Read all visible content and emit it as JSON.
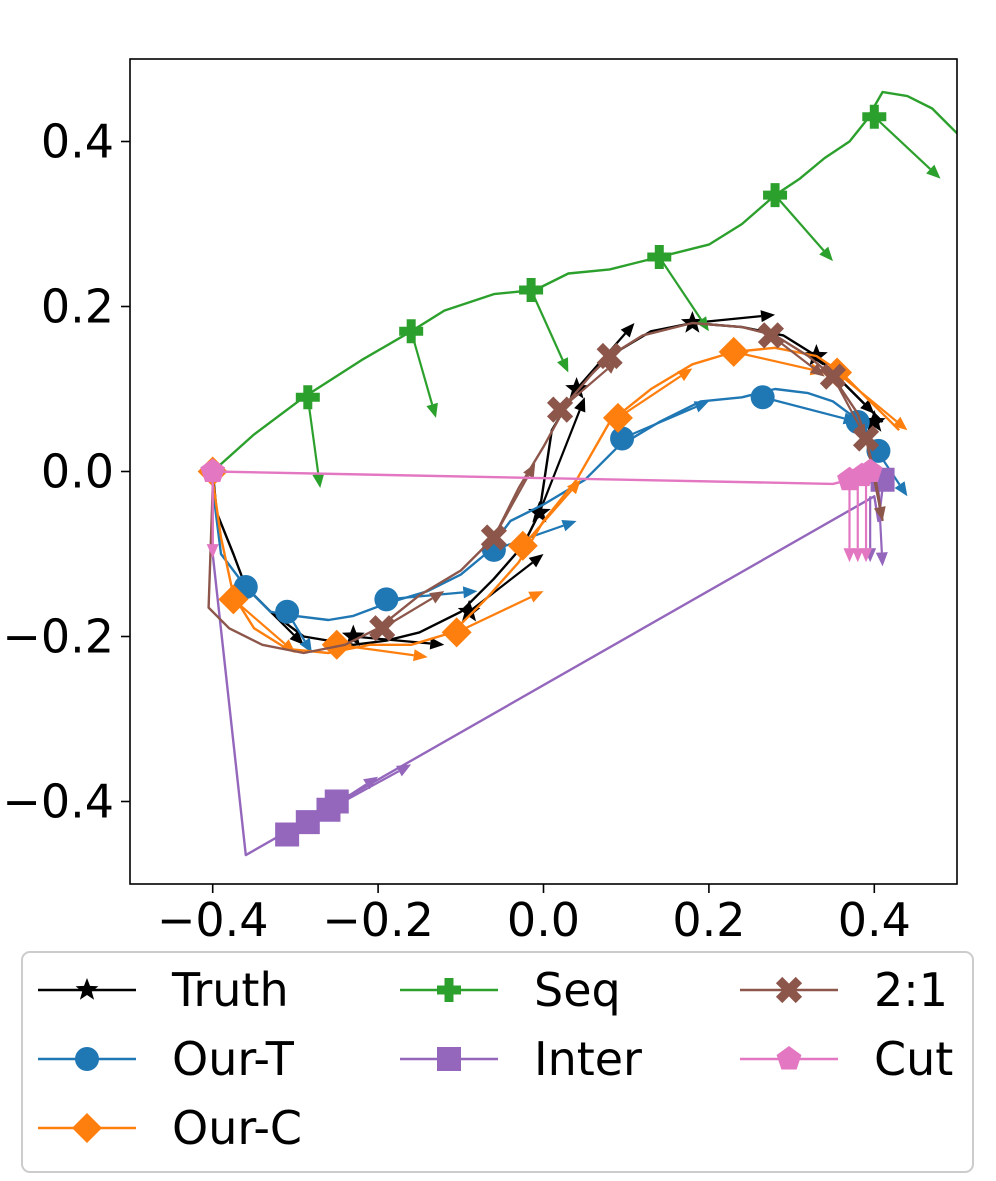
{
  "chart_data": {
    "type": "line",
    "title": "",
    "xlabel": "",
    "ylabel": "",
    "xlim": [
      -0.5,
      0.5
    ],
    "ylim": [
      -0.5,
      0.5
    ],
    "grid": false,
    "legend_position": "bottom",
    "xticks": [
      -0.4,
      -0.2,
      0.0,
      0.2,
      0.4
    ],
    "yticks": [
      -0.4,
      -0.2,
      0.0,
      0.2,
      0.4
    ],
    "xtick_labels": [
      "−0.4",
      "−0.2",
      "0.0",
      "0.2",
      "0.4"
    ],
    "ytick_labels": [
      "−0.4",
      "−0.2",
      "0.0",
      "0.2",
      "0.4"
    ],
    "series": [
      {
        "name": "Truth",
        "color": "#000000",
        "marker": "star",
        "path": [
          [
            -0.4,
            0.0
          ],
          [
            -0.395,
            -0.05
          ],
          [
            -0.375,
            -0.1
          ],
          [
            -0.36,
            -0.14
          ],
          [
            -0.33,
            -0.17
          ],
          [
            -0.29,
            -0.2
          ],
          [
            -0.23,
            -0.21
          ],
          [
            -0.19,
            -0.205
          ],
          [
            -0.15,
            -0.195
          ],
          [
            -0.1,
            -0.17
          ],
          [
            -0.06,
            -0.13
          ],
          [
            -0.025,
            -0.09
          ],
          [
            -0.005,
            -0.05
          ],
          [
            0.01,
            0.05
          ],
          [
            0.04,
            0.1
          ],
          [
            0.08,
            0.14
          ],
          [
            0.13,
            0.17
          ],
          [
            0.18,
            0.18
          ],
          [
            0.24,
            0.175
          ],
          [
            0.29,
            0.165
          ],
          [
            0.33,
            0.14
          ],
          [
            0.36,
            0.11
          ],
          [
            0.39,
            0.08
          ],
          [
            0.41,
            0.06
          ]
        ],
        "markers": [
          [
            -0.4,
            0.0
          ],
          [
            -0.36,
            -0.14
          ],
          [
            -0.23,
            -0.2
          ],
          [
            -0.09,
            -0.17
          ],
          [
            -0.005,
            -0.05
          ],
          [
            0.04,
            0.1
          ],
          [
            0.18,
            0.18
          ],
          [
            0.33,
            0.14
          ],
          [
            0.4,
            0.06
          ]
        ],
        "arrows": [
          [
            [
              -0.36,
              -0.14
            ],
            [
              -0.29,
              -0.21
            ]
          ],
          [
            [
              -0.23,
              -0.2
            ],
            [
              -0.12,
              -0.21
            ]
          ],
          [
            [
              -0.09,
              -0.17
            ],
            [
              0.0,
              -0.1
            ]
          ],
          [
            [
              -0.005,
              -0.05
            ],
            [
              0.05,
              0.09
            ]
          ],
          [
            [
              0.04,
              0.1
            ],
            [
              0.11,
              0.18
            ]
          ],
          [
            [
              0.18,
              0.18
            ],
            [
              0.28,
              0.19
            ]
          ],
          [
            [
              0.33,
              0.14
            ],
            [
              0.4,
              0.07
            ]
          ]
        ]
      },
      {
        "name": "Our-T",
        "color": "#1f77b4",
        "marker": "circle",
        "path": [
          [
            -0.4,
            -0.02
          ],
          [
            -0.39,
            -0.1
          ],
          [
            -0.36,
            -0.14
          ],
          [
            -0.33,
            -0.17
          ],
          [
            -0.3,
            -0.175
          ],
          [
            -0.26,
            -0.18
          ],
          [
            -0.23,
            -0.175
          ],
          [
            -0.19,
            -0.16
          ],
          [
            -0.14,
            -0.145
          ],
          [
            -0.1,
            -0.125
          ],
          [
            -0.07,
            -0.1
          ],
          [
            -0.04,
            -0.06
          ],
          [
            0.0,
            -0.04
          ],
          [
            0.05,
            -0.01
          ],
          [
            0.09,
            0.03
          ],
          [
            0.14,
            0.06
          ],
          [
            0.19,
            0.085
          ],
          [
            0.24,
            0.09
          ],
          [
            0.28,
            0.1
          ],
          [
            0.32,
            0.095
          ],
          [
            0.35,
            0.085
          ],
          [
            0.37,
            0.07
          ],
          [
            0.39,
            0.05
          ],
          [
            0.4,
            0.03
          ]
        ],
        "markers": [
          [
            -0.36,
            -0.14
          ],
          [
            -0.31,
            -0.17
          ],
          [
            -0.19,
            -0.155
          ],
          [
            -0.06,
            -0.095
          ],
          [
            0.095,
            0.04
          ],
          [
            0.265,
            0.09
          ],
          [
            0.38,
            0.06
          ],
          [
            0.405,
            0.025
          ]
        ],
        "arrows": [
          [
            [
              -0.31,
              -0.17
            ],
            [
              -0.28,
              -0.22
            ]
          ],
          [
            [
              -0.19,
              -0.155
            ],
            [
              -0.08,
              -0.145
            ]
          ],
          [
            [
              -0.06,
              -0.095
            ],
            [
              0.04,
              -0.06
            ]
          ],
          [
            [
              0.095,
              0.04
            ],
            [
              0.2,
              0.085
            ]
          ],
          [
            [
              0.265,
              0.09
            ],
            [
              0.38,
              0.06
            ]
          ],
          [
            [
              0.38,
              0.06
            ],
            [
              0.44,
              -0.03
            ]
          ]
        ]
      },
      {
        "name": "Our-C",
        "color": "#ff7f0e",
        "marker": "diamond",
        "path": [
          [
            -0.4,
            -0.01
          ],
          [
            -0.39,
            -0.08
          ],
          [
            -0.375,
            -0.15
          ],
          [
            -0.35,
            -0.19
          ],
          [
            -0.31,
            -0.215
          ],
          [
            -0.26,
            -0.22
          ],
          [
            -0.21,
            -0.21
          ],
          [
            -0.16,
            -0.21
          ],
          [
            -0.11,
            -0.195
          ],
          [
            -0.07,
            -0.155
          ],
          [
            -0.03,
            -0.11
          ],
          [
            0.0,
            -0.06
          ],
          [
            0.04,
            -0.01
          ],
          [
            0.08,
            0.06
          ],
          [
            0.13,
            0.1
          ],
          [
            0.18,
            0.13
          ],
          [
            0.23,
            0.145
          ],
          [
            0.28,
            0.15
          ],
          [
            0.33,
            0.14
          ],
          [
            0.36,
            0.12
          ],
          [
            0.39,
            0.09
          ],
          [
            0.41,
            0.07
          ],
          [
            0.43,
            0.05
          ]
        ],
        "markers": [
          [
            -0.4,
            0.0
          ],
          [
            -0.375,
            -0.155
          ],
          [
            -0.25,
            -0.21
          ],
          [
            -0.105,
            -0.195
          ],
          [
            -0.025,
            -0.09
          ],
          [
            0.09,
            0.065
          ],
          [
            0.23,
            0.145
          ],
          [
            0.355,
            0.12
          ]
        ],
        "arrows": [
          [
            [
              -0.375,
              -0.155
            ],
            [
              -0.3,
              -0.22
            ]
          ],
          [
            [
              -0.25,
              -0.21
            ],
            [
              -0.14,
              -0.225
            ]
          ],
          [
            [
              -0.105,
              -0.195
            ],
            [
              0.0,
              -0.145
            ]
          ],
          [
            [
              -0.025,
              -0.09
            ],
            [
              0.045,
              -0.01
            ]
          ],
          [
            [
              0.09,
              0.065
            ],
            [
              0.18,
              0.125
            ]
          ],
          [
            [
              0.23,
              0.145
            ],
            [
              0.34,
              0.12
            ]
          ],
          [
            [
              0.355,
              0.12
            ],
            [
              0.44,
              0.05
            ]
          ]
        ]
      },
      {
        "name": "Seq",
        "color": "#2ca02c",
        "marker": "plus",
        "path": [
          [
            -0.4,
            0.0
          ],
          [
            -0.35,
            0.045
          ],
          [
            -0.29,
            0.09
          ],
          [
            -0.22,
            0.135
          ],
          [
            -0.16,
            0.17
          ],
          [
            -0.12,
            0.195
          ],
          [
            -0.06,
            0.215
          ],
          [
            -0.01,
            0.22
          ],
          [
            0.03,
            0.24
          ],
          [
            0.08,
            0.245
          ],
          [
            0.14,
            0.26
          ],
          [
            0.2,
            0.275
          ],
          [
            0.24,
            0.3
          ],
          [
            0.28,
            0.335
          ],
          [
            0.31,
            0.355
          ],
          [
            0.34,
            0.38
          ],
          [
            0.37,
            0.4
          ],
          [
            0.39,
            0.425
          ],
          [
            0.41,
            0.46
          ],
          [
            0.44,
            0.455
          ],
          [
            0.47,
            0.44
          ],
          [
            0.5,
            0.41
          ]
        ],
        "markers": [
          [
            -0.285,
            0.09
          ],
          [
            -0.16,
            0.17
          ],
          [
            -0.015,
            0.22
          ],
          [
            0.14,
            0.26
          ],
          [
            0.28,
            0.335
          ],
          [
            0.4,
            0.43
          ]
        ],
        "arrows": [
          [
            [
              -0.285,
              0.09
            ],
            [
              -0.27,
              -0.02
            ]
          ],
          [
            [
              -0.16,
              0.17
            ],
            [
              -0.13,
              0.065
            ]
          ],
          [
            [
              -0.015,
              0.22
            ],
            [
              0.03,
              0.12
            ]
          ],
          [
            [
              0.14,
              0.26
            ],
            [
              0.2,
              0.17
            ]
          ],
          [
            [
              0.28,
              0.335
            ],
            [
              0.35,
              0.255
            ]
          ],
          [
            [
              0.4,
              0.43
            ],
            [
              0.48,
              0.355
            ]
          ]
        ]
      },
      {
        "name": "Inter",
        "color": "#9467bd",
        "marker": "square",
        "path": [
          [
            -0.4,
            0.0
          ],
          [
            -0.4,
            -0.1
          ],
          [
            -0.36,
            -0.465
          ],
          [
            0.4,
            -0.03
          ],
          [
            0.405,
            -0.06
          ],
          [
            0.41,
            -0.02
          ]
        ],
        "markers": [
          [
            -0.31,
            -0.44
          ],
          [
            -0.285,
            -0.425
          ],
          [
            -0.26,
            -0.41
          ],
          [
            -0.25,
            -0.4
          ],
          [
            0.41,
            -0.01
          ]
        ],
        "arrows": [
          [
            [
              -0.31,
              -0.44
            ],
            [
              -0.23,
              -0.39
            ]
          ],
          [
            [
              -0.285,
              -0.425
            ],
            [
              -0.2,
              -0.37
            ]
          ],
          [
            [
              -0.26,
              -0.41
            ],
            [
              -0.16,
              -0.355
            ]
          ],
          [
            [
              0.395,
              -0.03
            ],
            [
              0.395,
              -0.11
            ]
          ],
          [
            [
              0.405,
              -0.02
            ],
            [
              0.41,
              -0.115
            ]
          ]
        ]
      },
      {
        "name": "2:1",
        "color": "#8c564b",
        "marker": "x",
        "path": [
          [
            -0.4,
            -0.02
          ],
          [
            -0.405,
            -0.165
          ],
          [
            -0.38,
            -0.19
          ],
          [
            -0.34,
            -0.21
          ],
          [
            -0.29,
            -0.22
          ],
          [
            -0.24,
            -0.21
          ],
          [
            -0.2,
            -0.19
          ],
          [
            -0.15,
            -0.15
          ],
          [
            -0.1,
            -0.12
          ],
          [
            -0.06,
            -0.08
          ],
          [
            -0.03,
            -0.02
          ],
          [
            0.0,
            0.03
          ],
          [
            0.03,
            0.085
          ],
          [
            0.06,
            0.12
          ],
          [
            0.08,
            0.14
          ],
          [
            0.12,
            0.165
          ],
          [
            0.18,
            0.18
          ],
          [
            0.24,
            0.175
          ],
          [
            0.28,
            0.165
          ],
          [
            0.32,
            0.14
          ],
          [
            0.35,
            0.115
          ],
          [
            0.38,
            0.07
          ],
          [
            0.39,
            0.04
          ],
          [
            0.4,
            0.0
          ],
          [
            0.41,
            -0.06
          ]
        ],
        "markers": [
          [
            -0.195,
            -0.19
          ],
          [
            -0.06,
            -0.08
          ],
          [
            0.02,
            0.075
          ],
          [
            0.08,
            0.14
          ],
          [
            0.275,
            0.165
          ],
          [
            0.35,
            0.115
          ],
          [
            0.39,
            0.04
          ]
        ],
        "arrows": [
          [
            [
              -0.195,
              -0.19
            ],
            [
              -0.12,
              -0.145
            ]
          ],
          [
            [
              -0.06,
              -0.08
            ],
            [
              -0.01,
              0.01
            ]
          ],
          [
            [
              0.02,
              0.075
            ],
            [
              0.09,
              0.135
            ]
          ],
          [
            [
              0.275,
              0.165
            ],
            [
              0.34,
              0.115
            ]
          ],
          [
            [
              0.35,
              0.115
            ],
            [
              0.39,
              0.04
            ]
          ],
          [
            [
              0.39,
              0.04
            ],
            [
              0.41,
              -0.06
            ]
          ]
        ]
      },
      {
        "name": "Cut",
        "color": "#e377c2",
        "marker": "pentagon",
        "path": [
          [
            -0.4,
            0.0
          ],
          [
            0.35,
            -0.015
          ],
          [
            0.37,
            -0.01
          ],
          [
            0.39,
            0.0
          ],
          [
            0.4,
            0.0
          ]
        ],
        "markers": [
          [
            -0.4,
            0.0
          ],
          [
            0.37,
            -0.01
          ],
          [
            0.385,
            -0.005
          ],
          [
            0.395,
            0.0
          ]
        ],
        "arrows": [
          [
            [
              -0.4,
              0.0
            ],
            [
              -0.4,
              -0.105
            ]
          ],
          [
            [
              0.37,
              -0.01
            ],
            [
              0.37,
              -0.11
            ]
          ],
          [
            [
              0.38,
              -0.005
            ],
            [
              0.38,
              -0.11
            ]
          ],
          [
            [
              0.39,
              0.0
            ],
            [
              0.39,
              -0.11
            ]
          ]
        ]
      }
    ]
  }
}
